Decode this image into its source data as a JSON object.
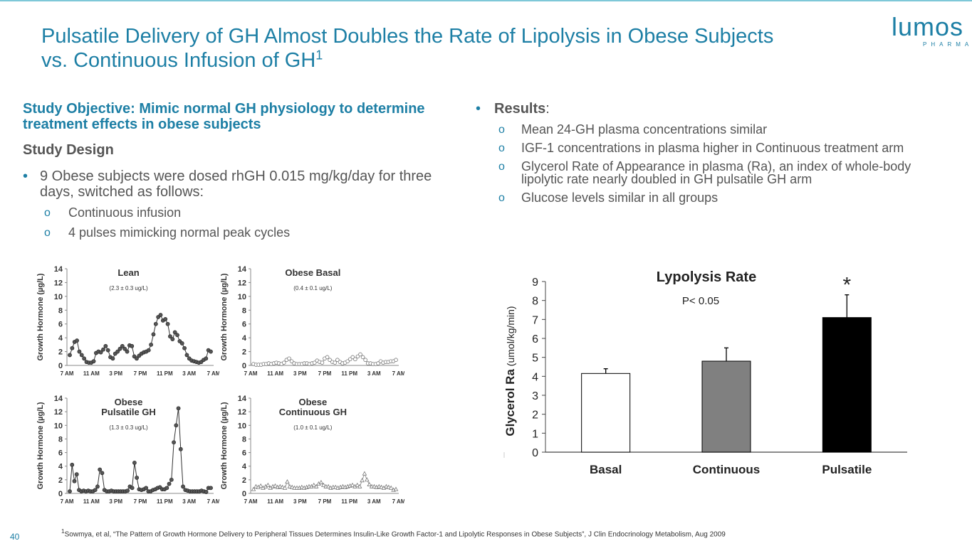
{
  "title": {
    "line1": "Pulsatile Delivery of GH Almost Doubles the Rate of Lipolysis in Obese Subjects",
    "line2": "vs. Continuous Infusion of GH",
    "superscript": "1"
  },
  "logo": {
    "word": "lumos",
    "sub": "PHARMA"
  },
  "left": {
    "objective": "Study Objective: Mimic normal GH physiology to determine treatment effects in obese subjects",
    "design_heading": "Study Design",
    "bullet": "9 Obese subjects were dosed rhGH 0.015 mg/kg/day for three days, switched as follows:",
    "subs": [
      "Continuous infusion",
      "4 pulses mimicking normal peak cycles"
    ]
  },
  "right": {
    "results_label": "Results",
    "results_colon": ":",
    "subs": [
      "Mean 24-GH plasma concentrations similar",
      "IGF-1 concentrations in plasma higher in Continuous treatment arm",
      "Glycerol Rate of Appearance in plasma (Ra), an index of whole-body lipolytic rate nearly doubled in GH pulsatile GH arm",
      "Glucose levels similar in all groups"
    ]
  },
  "bullet_char": "•",
  "sub_char": "o",
  "footnote": {
    "sup": "1",
    "text": "Sowmya, et al, “The Pattern of Growth Hormone Delivery to Peripheral Tissues Determines Insulin-Like Growth Factor-1 and Lipolytic Responses in Obese Subjects”, J Clin Endocrinology Metabolism, Aug 2009"
  },
  "page_number": "40",
  "colors": {
    "accent": "#1d7fa5",
    "text": "#555555"
  },
  "chart_data": [
    {
      "type": "bar",
      "title": "Lypolysis Rate",
      "annotation": "P< 0.05",
      "significance_marker": "*",
      "ylabel_bold": "Glycerol Ra",
      "ylabel_units": "(umol/kg/min)",
      "categories": [
        "Basal",
        "Continuous",
        "Pulsatile"
      ],
      "values": [
        4.15,
        4.8,
        7.1
      ],
      "error_upper": [
        4.4,
        5.5,
        8.3
      ],
      "bar_colors": [
        "#ffffff",
        "#808080",
        "#000000"
      ],
      "ylim": [
        0,
        9
      ],
      "yticks": [
        "0",
        "1",
        "2",
        "3",
        "4",
        "5",
        "6",
        "7",
        "8",
        "9"
      ]
    },
    {
      "type": "line",
      "title": "Lean",
      "title2": "",
      "subtitle": "(2.3 ±  0.3 ug/L)",
      "ylabel": "Growth Hormone (µg/L)",
      "yticks": [
        "0",
        "2",
        "4",
        "6",
        "8",
        "10",
        "12",
        "14"
      ],
      "xticks": [
        "7 AM",
        "11 AM",
        "3 PM",
        "7 PM",
        "11 PM",
        "3 AM",
        "7 AM"
      ],
      "ylim": [
        0,
        14
      ],
      "marker": "filled",
      "values": [
        1.5,
        2.5,
        3.4,
        3.6,
        2.0,
        1.5,
        1.0,
        0.5,
        0.4,
        0.4,
        0.6,
        1.8,
        2.0,
        1.9,
        2.3,
        2.8,
        2.2,
        1.2,
        1.0,
        1.7,
        2.0,
        2.4,
        2.8,
        2.4,
        2.0,
        2.9,
        2.8,
        1.3,
        1.0,
        1.4,
        1.7,
        1.9,
        2.0,
        2.2,
        3.0,
        4.5,
        6.0,
        7.0,
        7.3,
        6.5,
        6.7,
        6.0,
        4.2,
        3.8,
        4.8,
        4.4,
        3.5,
        3.2,
        2.5,
        1.5,
        1.0,
        0.7,
        0.6,
        0.5,
        0.4,
        0.5,
        0.8,
        1.0,
        2.2,
        2.0
      ]
    },
    {
      "type": "line",
      "title": "Obese Basal",
      "title2": "",
      "subtitle": "(0.4 ± 0.1 ug/L)",
      "ylabel": "Growth Hormone (µg/L)",
      "yticks": [
        "0",
        "2",
        "4",
        "6",
        "8",
        "10",
        "12",
        "14"
      ],
      "xticks": [
        "7 AM",
        "11 AM",
        "3 PM",
        "7 PM",
        "11 PM",
        "3 AM",
        "7 AM"
      ],
      "ylim": [
        0,
        14
      ],
      "marker": "open",
      "values": [
        0.2,
        0.1,
        0.1,
        0.1,
        0.2,
        0.2,
        0.3,
        0.2,
        0.3,
        0.4,
        0.3,
        0.2,
        0.4,
        0.8,
        1.0,
        0.6,
        0.3,
        0.2,
        0.2,
        0.2,
        0.3,
        0.3,
        0.2,
        0.3,
        0.4,
        0.7,
        0.5,
        0.4,
        1.0,
        1.2,
        0.8,
        0.5,
        0.4,
        0.8,
        0.5,
        0.3,
        0.4,
        0.6,
        0.9,
        1.2,
        0.9,
        1.3,
        1.6,
        1.2,
        0.8,
        0.3,
        0.3,
        0.2,
        0.2,
        0.3,
        0.6,
        0.4,
        0.5,
        0.5,
        0.6,
        0.6,
        0.8
      ]
    },
    {
      "type": "line",
      "title": "Obese",
      "title2": "Pulsatile  GH",
      "subtitle": "(1.3 ±  0.3 ug/L)",
      "ylabel": "Growth Hormone (µg/L)",
      "yticks": [
        "0",
        "2",
        "4",
        "6",
        "8",
        "10",
        "12",
        "14"
      ],
      "xticks": [
        "7 AM",
        "11 AM",
        "3 PM",
        "7 PM",
        "11 PM",
        "3 AM",
        "7 AM"
      ],
      "ylim": [
        0,
        14
      ],
      "marker": "filled",
      "values": [
        0.3,
        4.2,
        1.8,
        2.8,
        0.5,
        0.3,
        0.4,
        0.3,
        0.4,
        0.3,
        0.3,
        0.5,
        1.0,
        3.5,
        3.0,
        0.5,
        0.3,
        0.3,
        0.4,
        0.3,
        0.3,
        0.3,
        0.3,
        0.3,
        0.3,
        0.4,
        1.0,
        0.8,
        4.5,
        2.3,
        0.6,
        0.5,
        0.6,
        0.8,
        0.3,
        0.3,
        0.5,
        0.6,
        0.8,
        0.9,
        0.6,
        0.6,
        0.8,
        1.4,
        2.0,
        7.5,
        10.0,
        12.5,
        6.5,
        1.0,
        0.5,
        0.4,
        0.3,
        0.3,
        0.3,
        0.3,
        0.3,
        0.4,
        0.3,
        0.2,
        0.8,
        0.8
      ]
    },
    {
      "type": "line",
      "title": "Obese",
      "title2": "Continuous  GH",
      "subtitle": "(1.0 ±  0.1 ug/L)",
      "ylabel": "Growth Hormone (µg/L)",
      "yticks": [
        "0",
        "2",
        "4",
        "6",
        "8",
        "10",
        "12",
        "14"
      ],
      "xticks": [
        "7 AM",
        "11 AM",
        "3 PM",
        "7 PM",
        "11 PM",
        "3 AM",
        "7 AM"
      ],
      "ylim": [
        0,
        14
      ],
      "marker": "triangle",
      "values": [
        0.6,
        1.0,
        0.9,
        1.1,
        0.8,
        1.0,
        1.2,
        0.8,
        1.0,
        1.1,
        0.9,
        1.0,
        0.9,
        0.8,
        1.7,
        1.0,
        0.9,
        0.8,
        0.8,
        0.8,
        0.9,
        0.8,
        0.9,
        1.0,
        1.0,
        1.2,
        1.0,
        1.4,
        1.6,
        1.2,
        1.0,
        1.0,
        0.8,
        0.9,
        0.9,
        0.8,
        0.9,
        1.0,
        0.9,
        1.0,
        1.1,
        1.2,
        1.0,
        1.2,
        1.0,
        1.9,
        2.9,
        2.0,
        1.3,
        1.0,
        1.0,
        0.9,
        1.0,
        0.9,
        0.8,
        1.0,
        0.9,
        0.8,
        0.5,
        0.6
      ]
    }
  ]
}
